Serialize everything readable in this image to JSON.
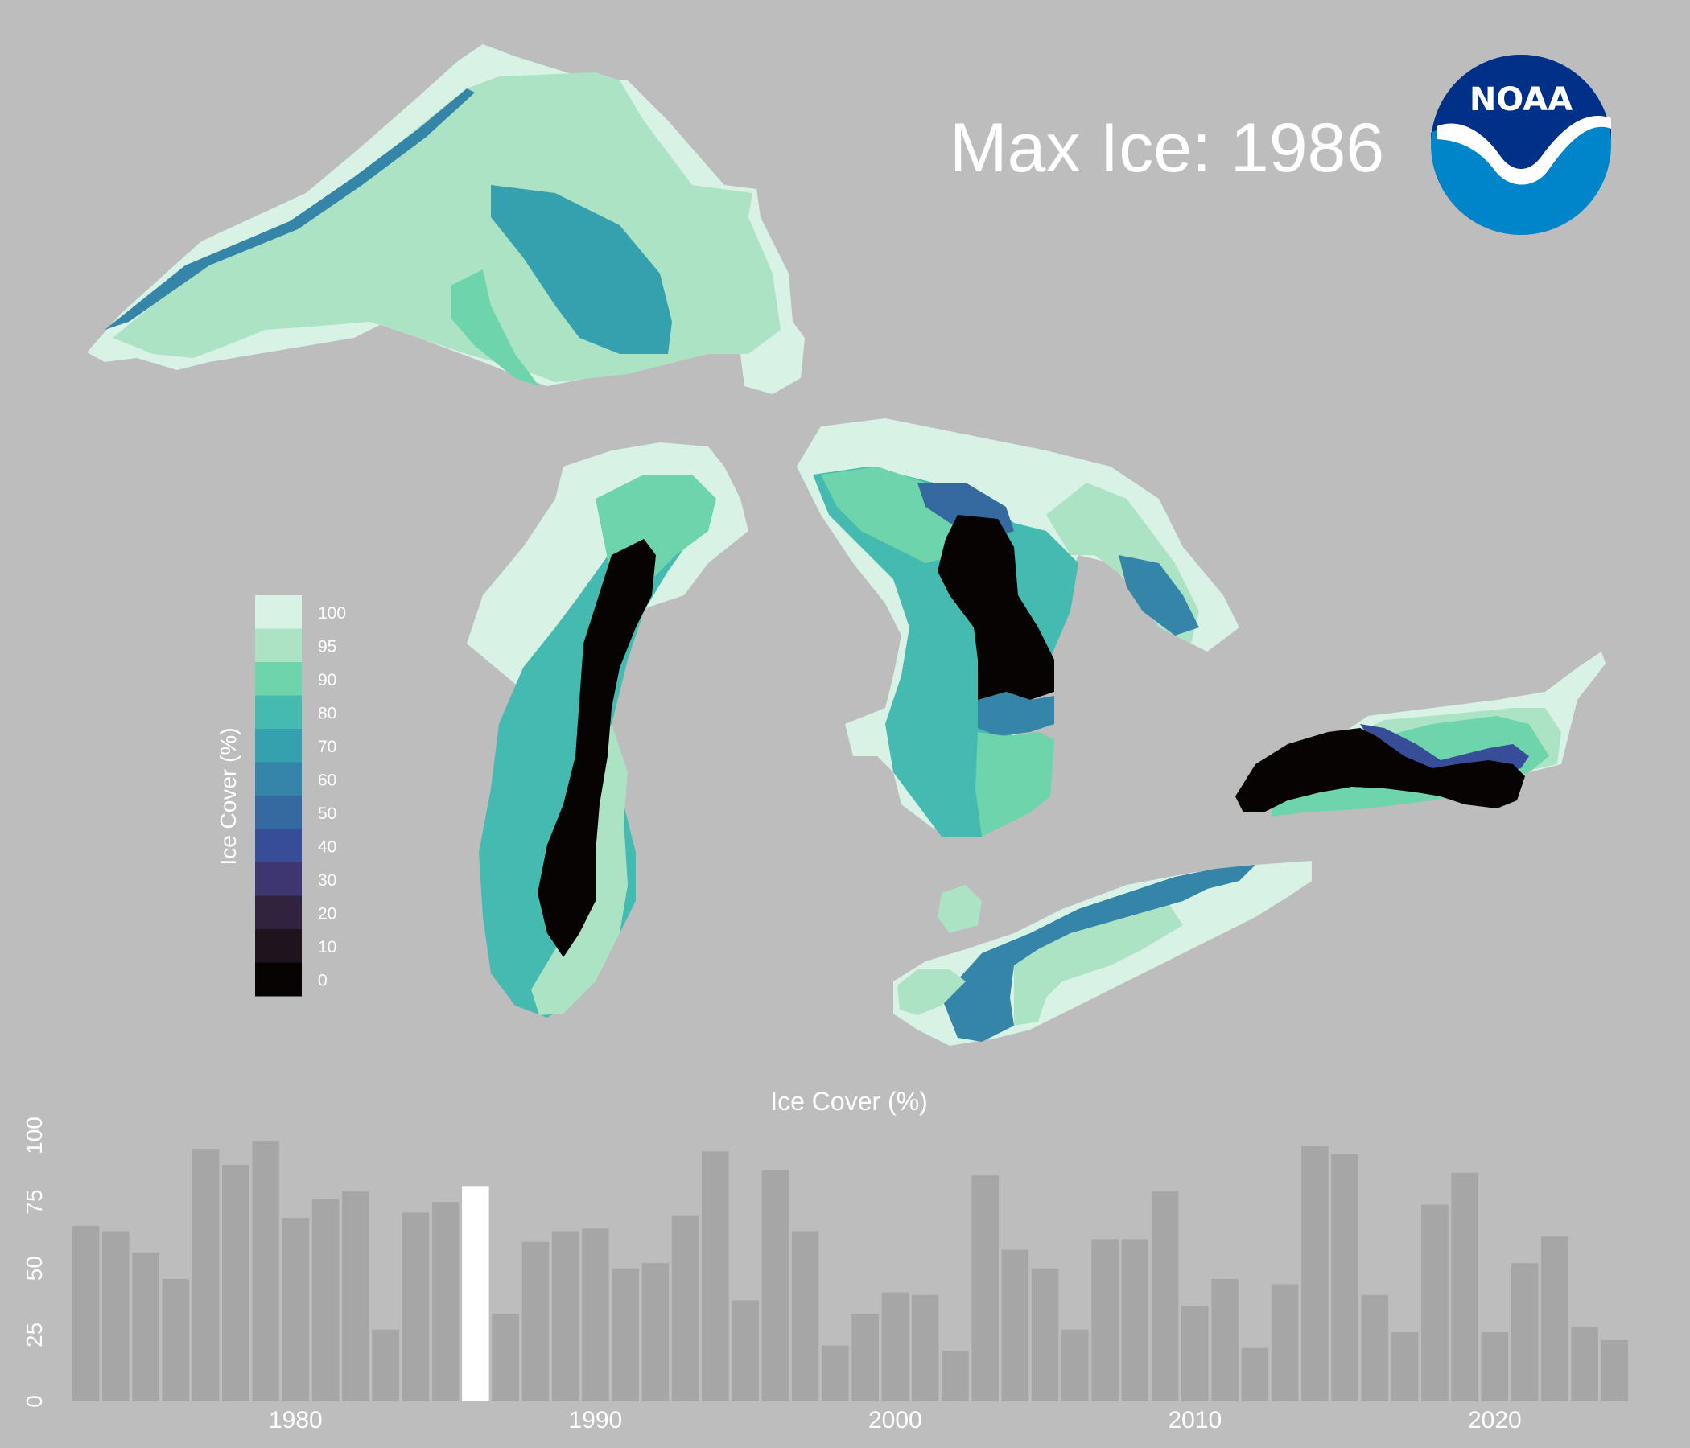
{
  "title": "Max Ice: 1986",
  "logo": {
    "text": "NOAA",
    "colors": {
      "outer": "#0085ca",
      "inner": "#003087",
      "bird": "#ffffff"
    }
  },
  "legend": {
    "title": "Ice Cover (%)",
    "entries": [
      {
        "label": "100",
        "color": "#d9f2e6"
      },
      {
        "label": "95",
        "color": "#ade3c5"
      },
      {
        "label": "90",
        "color": "#6ed4ab"
      },
      {
        "label": "80",
        "color": "#45bab0"
      },
      {
        "label": "70",
        "color": "#35a0ae"
      },
      {
        "label": "60",
        "color": "#3485a7"
      },
      {
        "label": "50",
        "color": "#346a9f"
      },
      {
        "label": "40",
        "color": "#384d97"
      },
      {
        "label": "30",
        "color": "#3e3670"
      },
      {
        "label": "20",
        "color": "#30233f"
      },
      {
        "label": "10",
        "color": "#1d141d"
      },
      {
        "label": "0",
        "color": "#070303"
      }
    ]
  },
  "colors": {
    "background": "#bdbdbd",
    "bar": "#a6a6a6",
    "bar_highlight": "#ffffff"
  },
  "chart_data": {
    "type": "bar",
    "title": "Ice Cover (%)",
    "xlabel": "",
    "ylabel": "",
    "ylim": [
      0,
      105
    ],
    "xlim": [
      1972.5,
      2024.5
    ],
    "x_ticks": [
      "1980",
      "1990",
      "2000",
      "2010",
      "2020"
    ],
    "y_ticks": [
      "0",
      "25",
      "50",
      "75",
      "100"
    ],
    "highlight_year": 1986,
    "grid": false,
    "years": [
      1973,
      1974,
      1975,
      1976,
      1977,
      1978,
      1979,
      1980,
      1981,
      1982,
      1983,
      1984,
      1985,
      1986,
      1987,
      1988,
      1989,
      1990,
      1991,
      1992,
      1993,
      1994,
      1995,
      1996,
      1997,
      1998,
      1999,
      2000,
      2001,
      2002,
      2003,
      2004,
      2005,
      2006,
      2007,
      2008,
      2009,
      2010,
      2011,
      2012,
      2013,
      2014,
      2015,
      2016,
      2017,
      2018,
      2019,
      2020,
      2021,
      2022,
      2023,
      2024
    ],
    "values": [
      66,
      64,
      56,
      46,
      95,
      89,
      98,
      69,
      76,
      79,
      27,
      71,
      75,
      81,
      33,
      60,
      64,
      65,
      50,
      52,
      70,
      94,
      38,
      87,
      64,
      21,
      33,
      41,
      40,
      19,
      85,
      57,
      50,
      27,
      61,
      61,
      79,
      36,
      46,
      20,
      44,
      96,
      93,
      40,
      26,
      74,
      86,
      26,
      52,
      62,
      28,
      23
    ]
  }
}
